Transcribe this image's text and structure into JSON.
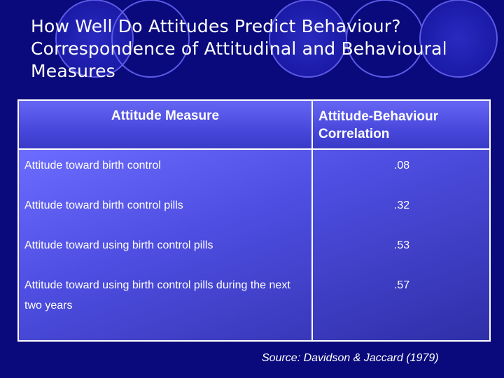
{
  "slide": {
    "title_lines": [
      "How Well Do Attitudes Predict Behaviour?",
      "Correspondence of Attitudinal and Behavioural",
      "Measures"
    ],
    "source": "Source: Davidson & Jaccard (1979)"
  },
  "table": {
    "headers": [
      "Attitude Measure",
      "Attitude-Behaviour Correlation"
    ],
    "rows": [
      {
        "measure": "Attitude toward birth control",
        "correlation": ".08"
      },
      {
        "measure": "Attitude toward birth control pills",
        "correlation": ".32"
      },
      {
        "measure": "Attitude toward using birth control pills",
        "correlation": ".53"
      },
      {
        "measure": "Attitude toward using birth control pills during the next two years",
        "correlation": ".57"
      }
    ]
  },
  "colors": {
    "background": "#0a0a7c",
    "table_header": "#5656e8",
    "table_body": "#5a5af0",
    "text": "#ffffff"
  }
}
